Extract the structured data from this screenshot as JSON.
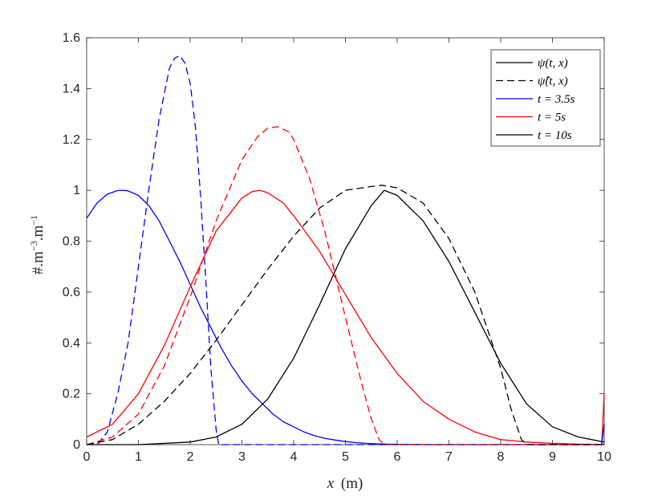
{
  "chart_data": {
    "type": "line",
    "title": "",
    "xlabel": "x (m)",
    "xlabel_var": "x",
    "xlabel_unit": "(m)",
    "ylabel": "#.m⁻³.m⁻¹",
    "ylabel_main": "#.m",
    "ylabel_exp1": "−3",
    "ylabel_mid": ".m",
    "ylabel_exp2": "−1",
    "xlim": [
      0,
      10
    ],
    "ylim": [
      0,
      1.6
    ],
    "xticks": [
      "0",
      "1",
      "2",
      "3",
      "4",
      "5",
      "6",
      "7",
      "8",
      "9",
      "10"
    ],
    "yticks": [
      "0",
      "0.2",
      "0.4",
      "0.6",
      "0.8",
      "1",
      "1.2",
      "1.4",
      "1.6"
    ],
    "grid": false,
    "legend_position": "top-right",
    "legend": [
      {
        "label": "ψ(t, x)",
        "color": "#000000",
        "style": "solid"
      },
      {
        "label": "ψ̂(t, x)",
        "color": "#000000",
        "style": "dashed"
      },
      {
        "label": "t = 3.5s",
        "color": "#0000ff",
        "style": "solid"
      },
      {
        "label": "t = 5s",
        "color": "#ff0000",
        "style": "solid"
      },
      {
        "label": "t = 10s",
        "color": "#000000",
        "style": "solid"
      }
    ],
    "series": [
      {
        "color": "#0000ff",
        "style": "solid",
        "x": [
          0,
          0.2,
          0.4,
          0.6,
          0.7,
          0.8,
          1.0,
          1.2,
          1.4,
          1.6,
          1.8,
          2.0,
          2.2,
          2.4,
          2.6,
          2.8,
          3.0,
          3.2,
          3.4,
          3.6,
          3.8,
          4.0,
          4.2,
          4.4,
          4.6,
          4.8,
          5.0,
          5.2,
          5.4,
          5.6,
          5.8,
          6.0,
          6.5,
          7.0,
          10.0
        ],
        "y": [
          0.89,
          0.95,
          0.985,
          0.999,
          1.0,
          0.998,
          0.98,
          0.94,
          0.88,
          0.8,
          0.72,
          0.63,
          0.54,
          0.46,
          0.38,
          0.31,
          0.25,
          0.2,
          0.16,
          0.12,
          0.09,
          0.07,
          0.05,
          0.035,
          0.025,
          0.018,
          0.012,
          0.008,
          0.005,
          0.003,
          0.002,
          0.001,
          0.0,
          0.0,
          0.0
        ]
      },
      {
        "color": "#0000ff",
        "style": "dashed",
        "x": [
          0,
          0.2,
          0.4,
          0.6,
          0.8,
          1.0,
          1.2,
          1.4,
          1.6,
          1.7,
          1.8,
          1.9,
          2.0,
          2.1,
          2.2,
          2.3,
          2.4,
          2.5,
          2.55,
          2.6,
          3.0,
          10.0
        ],
        "y": [
          0.0,
          0.0,
          0.05,
          0.2,
          0.4,
          0.7,
          1.0,
          1.28,
          1.48,
          1.52,
          1.53,
          1.5,
          1.42,
          1.25,
          0.98,
          0.65,
          0.3,
          0.06,
          0.0,
          0.0,
          0.0,
          0.0
        ]
      },
      {
        "color": "#ff0000",
        "style": "solid",
        "x": [
          0,
          0.5,
          1.0,
          1.5,
          2.0,
          2.5,
          3.0,
          3.2,
          3.35,
          3.5,
          3.8,
          4.0,
          4.5,
          5.0,
          5.5,
          6.0,
          6.5,
          7.0,
          7.5,
          8.0,
          8.5,
          9.0,
          9.5,
          10.0
        ],
        "y": [
          0.03,
          0.08,
          0.2,
          0.39,
          0.62,
          0.84,
          0.97,
          0.995,
          1.0,
          0.99,
          0.95,
          0.9,
          0.76,
          0.59,
          0.42,
          0.28,
          0.17,
          0.1,
          0.05,
          0.02,
          0.01,
          0.005,
          0.002,
          0.0
        ]
      },
      {
        "color": "#ff0000",
        "style": "dashed",
        "x": [
          0,
          0.5,
          1.0,
          1.5,
          2.0,
          2.5,
          3.0,
          3.3,
          3.5,
          3.7,
          3.9,
          4.0,
          4.3,
          4.6,
          5.0,
          5.3,
          5.5,
          5.65,
          5.75,
          6.0,
          10.0
        ],
        "y": [
          0.0,
          0.03,
          0.12,
          0.31,
          0.58,
          0.88,
          1.12,
          1.21,
          1.245,
          1.25,
          1.23,
          1.2,
          1.05,
          0.84,
          0.5,
          0.25,
          0.1,
          0.02,
          0.0,
          0.0,
          0.0
        ]
      },
      {
        "color": "#000000",
        "style": "solid",
        "x": [
          0,
          1.0,
          2.0,
          2.5,
          3.0,
          3.5,
          4.0,
          4.5,
          5.0,
          5.5,
          5.75,
          6.0,
          6.5,
          7.0,
          7.5,
          8.0,
          8.5,
          9.0,
          9.5,
          10.0
        ],
        "y": [
          0.0,
          0.0,
          0.01,
          0.03,
          0.08,
          0.18,
          0.34,
          0.55,
          0.77,
          0.94,
          1.0,
          0.98,
          0.88,
          0.72,
          0.52,
          0.32,
          0.16,
          0.07,
          0.03,
          0.01
        ]
      },
      {
        "color": "#000000",
        "style": "dashed",
        "x": [
          0,
          0.5,
          1.0,
          1.5,
          2.0,
          2.5,
          3.0,
          3.5,
          4.0,
          4.5,
          5.0,
          5.5,
          5.7,
          6.0,
          6.5,
          7.0,
          7.5,
          8.0,
          8.2,
          8.4,
          8.5,
          9.0,
          10.0
        ],
        "y": [
          0.0,
          0.02,
          0.08,
          0.17,
          0.28,
          0.41,
          0.55,
          0.69,
          0.82,
          0.93,
          1.0,
          1.015,
          1.02,
          1.01,
          0.95,
          0.81,
          0.6,
          0.3,
          0.14,
          0.02,
          0.0,
          0.0,
          0.0
        ]
      },
      {
        "color": "#ff0000",
        "style": "solid",
        "x": [
          9.95,
          10.0
        ],
        "y": [
          0.0,
          0.2
        ]
      },
      {
        "color": "#0000ff",
        "style": "solid",
        "x": [
          9.95,
          10.0
        ],
        "y": [
          0.0,
          0.08
        ]
      }
    ]
  }
}
